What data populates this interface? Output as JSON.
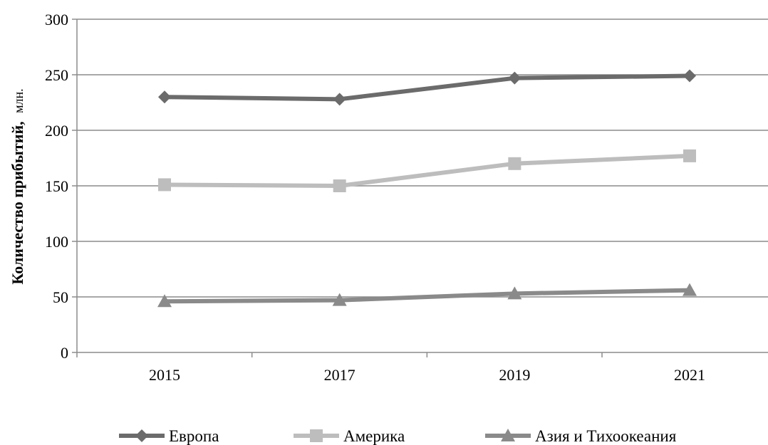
{
  "chart_data": {
    "type": "line",
    "title": "",
    "xlabel": "",
    "ylabel": {
      "main": "Количество прибытий,",
      "unit": "млн."
    },
    "categories": [
      "2015",
      "2017",
      "2019",
      "2021"
    ],
    "ylim": [
      0,
      300
    ],
    "yticks": [
      0,
      50,
      100,
      150,
      200,
      250,
      300
    ],
    "grid": true,
    "legend_position": "bottom",
    "series": [
      {
        "name": "Европа",
        "values": [
          230,
          228,
          247,
          249
        ],
        "color": "#6b6b6b",
        "marker": "diamond"
      },
      {
        "name": "Америка",
        "values": [
          151,
          150,
          170,
          177
        ],
        "color": "#bdbdbd",
        "marker": "square"
      },
      {
        "name": "Азия и Тихоокеания",
        "values": [
          46,
          47,
          53,
          56
        ],
        "color": "#8a8a8a",
        "marker": "triangle"
      }
    ]
  }
}
